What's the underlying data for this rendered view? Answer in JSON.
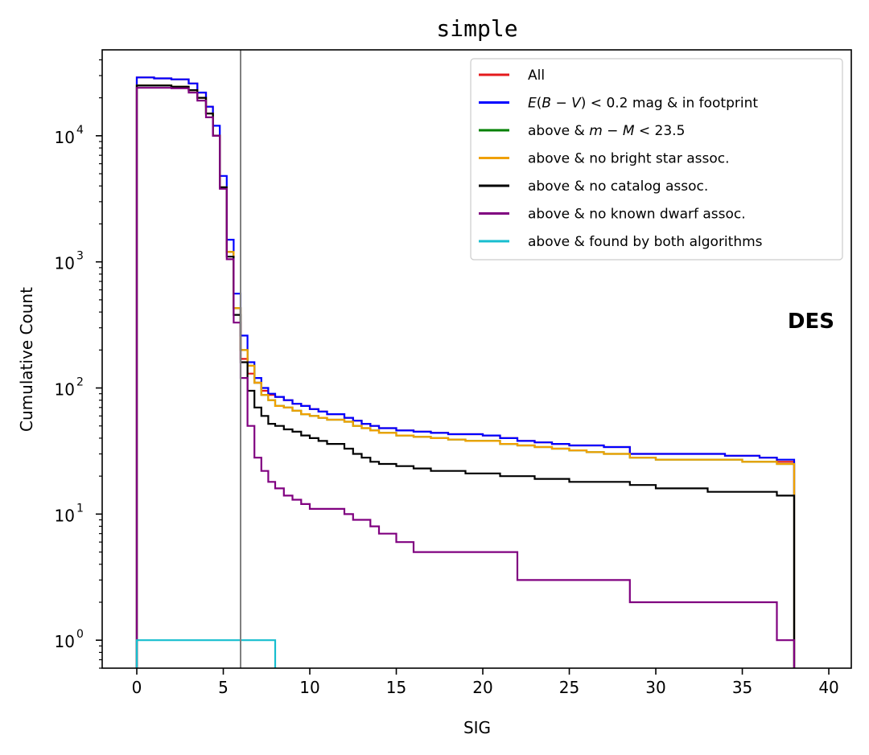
{
  "chart_data": {
    "type": "line",
    "title": "simple",
    "xlabel": "SIG",
    "ylabel": "Cumulative Count",
    "xlim": [
      -2,
      41.3
    ],
    "ylim": [
      0.6,
      48000
    ],
    "yscale": "log",
    "x_ticks": [
      "0",
      "5",
      "10",
      "15",
      "20",
      "25",
      "30",
      "35",
      "40"
    ],
    "y_ticks": [
      {
        "base": "10",
        "exp": "0"
      },
      {
        "base": "10",
        "exp": "1"
      },
      {
        "base": "10",
        "exp": "2"
      },
      {
        "base": "10",
        "exp": "3"
      },
      {
        "base": "10",
        "exp": "4"
      }
    ],
    "threshold_line": {
      "x": 6,
      "color": "#808080"
    },
    "annotation": "DES",
    "legend_position": "upper right",
    "series": [
      {
        "name": "All",
        "color": "#e41a1c",
        "x": [
          0,
          1,
          2,
          3,
          3.5,
          4,
          4.4,
          4.8,
          5.2,
          5.6,
          6,
          6.4,
          6.8,
          7.2,
          7.6,
          8,
          8.5,
          9,
          9.5,
          10,
          10.5,
          11,
          12,
          12.5,
          13,
          13.5,
          14,
          15,
          16,
          17,
          18,
          19,
          20,
          21,
          22,
          23,
          24,
          25,
          26,
          27,
          28.5,
          29,
          30,
          31,
          32,
          33,
          34,
          35,
          36,
          37,
          38
        ],
        "y": [
          29000,
          28500,
          28000,
          26000,
          22000,
          17000,
          10000,
          3900,
          1200,
          430,
          170,
          130,
          110,
          95,
          88,
          85,
          80,
          75,
          72,
          68,
          65,
          62,
          58,
          55,
          52,
          50,
          48,
          46,
          45,
          44,
          43,
          43,
          42,
          40,
          38,
          37,
          36,
          35,
          35,
          34,
          30,
          30,
          30,
          30,
          30,
          30,
          29,
          29,
          28,
          26,
          26
        ]
      },
      {
        "name": "$E(B-V) < 0.2$ mag & in footprint",
        "label_parts": [
          "E(B−V) < 0.2 mag & in footprint"
        ],
        "color": "#0000ff",
        "x": [
          0,
          1,
          2,
          3,
          3.5,
          4,
          4.4,
          4.8,
          5.2,
          5.6,
          6,
          6.4,
          6.8,
          7.2,
          7.6,
          8,
          8.5,
          9,
          9.5,
          10,
          10.5,
          11,
          12,
          12.5,
          13,
          13.5,
          14,
          15,
          16,
          17,
          18,
          19,
          20,
          21,
          22,
          23,
          24,
          25,
          26,
          27,
          28.5,
          29,
          30,
          31,
          32,
          33,
          34,
          35,
          36,
          37,
          38
        ],
        "y": [
          29000,
          28500,
          28000,
          26000,
          22000,
          17000,
          12000,
          4800,
          1500,
          560,
          260,
          160,
          120,
          100,
          90,
          85,
          80,
          75,
          72,
          68,
          65,
          62,
          58,
          55,
          52,
          50,
          48,
          46,
          45,
          44,
          43,
          43,
          42,
          40,
          38,
          37,
          36,
          35,
          35,
          34,
          30,
          30,
          30,
          30,
          30,
          30,
          29,
          29,
          28,
          27,
          26
        ]
      },
      {
        "name": "above & $m - M < 23.5$",
        "color": "#008000",
        "x": [
          0,
          1,
          2,
          3,
          3.5,
          4,
          4.4,
          4.8,
          5.2,
          5.6,
          6,
          6.4,
          6.8,
          7.2,
          7.6,
          8,
          8.5,
          9,
          9.5,
          10,
          10.5,
          11,
          12,
          12.5,
          13,
          13.5,
          14,
          15,
          16,
          17,
          18,
          19,
          20,
          21,
          22,
          23,
          24,
          25,
          26,
          27,
          28.5,
          29,
          30,
          31,
          32,
          33,
          34,
          35,
          36,
          37,
          38
        ],
        "y": [
          25000,
          25000,
          24500,
          23000,
          20000,
          15000,
          10000,
          3900,
          1200,
          430,
          200,
          150,
          110,
          88,
          80,
          72,
          70,
          66,
          62,
          60,
          58,
          56,
          54,
          50,
          48,
          46,
          44,
          42,
          41,
          40,
          39,
          38,
          38,
          36,
          35,
          34,
          33,
          32,
          31,
          30,
          28,
          28,
          27,
          27,
          27,
          27,
          27,
          26,
          26,
          25,
          24
        ]
      },
      {
        "name": "above & no bright star assoc.",
        "color": "#f0a000",
        "x": [
          0,
          1,
          2,
          3,
          3.5,
          4,
          4.4,
          4.8,
          5.2,
          5.6,
          6,
          6.4,
          6.8,
          7.2,
          7.6,
          8,
          8.5,
          9,
          9.5,
          10,
          10.5,
          11,
          12,
          12.5,
          13,
          13.5,
          14,
          15,
          16,
          17,
          18,
          19,
          20,
          21,
          22,
          23,
          24,
          25,
          26,
          27,
          28.5,
          29,
          30,
          31,
          32,
          33,
          34,
          35,
          36,
          37,
          38
        ],
        "y": [
          25000,
          25000,
          24500,
          23000,
          20000,
          15000,
          10000,
          3900,
          1200,
          430,
          200,
          150,
          110,
          88,
          80,
          72,
          70,
          66,
          62,
          60,
          58,
          56,
          54,
          50,
          48,
          46,
          44,
          42,
          41,
          40,
          39,
          38,
          38,
          36,
          35,
          34,
          33,
          32,
          31,
          30,
          28,
          28,
          27,
          27,
          27,
          27,
          27,
          26,
          26,
          25,
          24
        ]
      },
      {
        "name": "above & no catalog assoc.",
        "color": "#000000",
        "x": [
          0,
          1,
          2,
          3,
          3.5,
          4,
          4.4,
          4.8,
          5.2,
          5.6,
          6,
          6.4,
          6.8,
          7.2,
          7.6,
          8,
          8.5,
          9,
          9.5,
          10,
          10.5,
          11,
          12,
          12.5,
          13,
          13.5,
          14,
          15,
          16,
          17,
          18,
          19,
          20,
          21,
          22,
          23,
          24,
          25,
          26,
          27,
          28.5,
          29,
          30,
          31,
          32,
          33,
          34,
          35,
          36,
          37,
          38
        ],
        "y": [
          25000,
          25000,
          24500,
          23000,
          20000,
          15000,
          10000,
          3900,
          1100,
          380,
          160,
          95,
          70,
          60,
          52,
          50,
          47,
          45,
          42,
          40,
          38,
          36,
          33,
          30,
          28,
          26,
          25,
          24,
          23,
          22,
          22,
          21,
          21,
          20,
          20,
          19,
          19,
          18,
          18,
          18,
          17,
          17,
          16,
          16,
          16,
          15,
          15,
          15,
          15,
          14,
          14
        ]
      },
      {
        "name": "above & no known dwarf assoc.",
        "color": "#800080",
        "x": [
          0,
          1,
          2,
          3,
          3.5,
          4,
          4.4,
          4.8,
          5.2,
          5.6,
          6,
          6.4,
          6.8,
          7.2,
          7.6,
          8,
          8.5,
          9,
          9.5,
          10,
          10.5,
          11,
          12,
          12.5,
          13,
          13.5,
          14,
          15,
          16,
          17,
          18,
          19,
          20,
          21,
          22,
          23,
          24,
          25,
          26,
          27,
          28.5,
          29,
          30,
          31,
          32,
          33,
          34,
          35,
          36,
          37,
          38
        ],
        "y": [
          24000,
          24000,
          23800,
          22000,
          19000,
          14000,
          10000,
          3800,
          1050,
          330,
          120,
          50,
          28,
          22,
          18,
          16,
          14,
          13,
          12,
          11,
          11,
          11,
          10,
          9,
          9,
          8,
          7,
          6,
          5,
          5,
          5,
          5,
          5,
          5,
          3,
          3,
          3,
          3,
          3,
          3,
          2,
          2,
          2,
          2,
          2,
          2,
          2,
          2,
          2,
          1,
          1
        ]
      },
      {
        "name": "above & found by both algorithms",
        "color": "#17becf",
        "x": [
          0,
          8
        ],
        "y": [
          1,
          1
        ]
      }
    ]
  }
}
